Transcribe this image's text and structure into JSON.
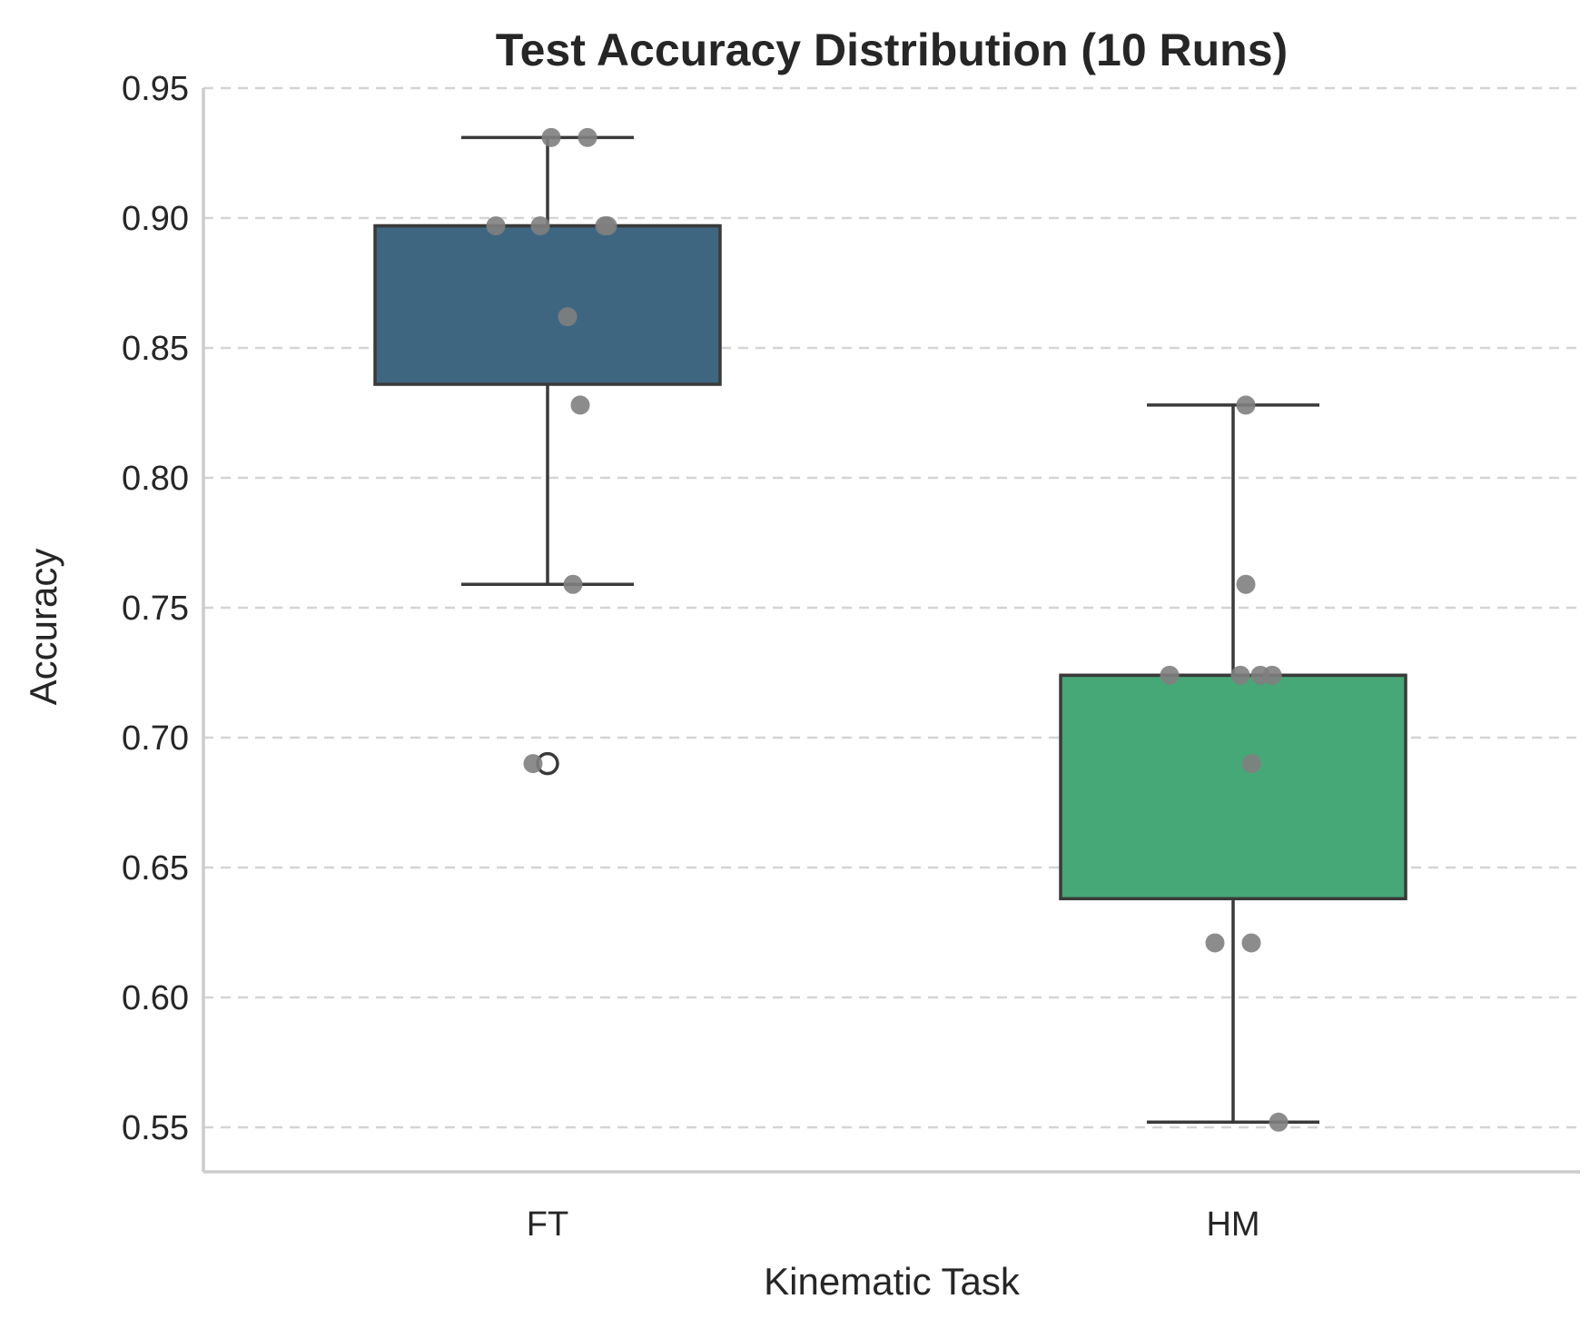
{
  "chart_data": {
    "type": "box",
    "title": "Test Accuracy Distribution (10 Runs)",
    "xlabel": "Kinematic Task",
    "ylabel": "Accuracy",
    "ylim": [
      0.533,
      0.95
    ],
    "yticks": [
      "0.55",
      "0.60",
      "0.65",
      "0.70",
      "0.75",
      "0.80",
      "0.85",
      "0.90",
      "0.95"
    ],
    "grid": "horizontal dashed",
    "categories": [
      "FT",
      "HM"
    ],
    "boxes": [
      {
        "category": "FT",
        "color": "#3e6680",
        "whisker_low": 0.759,
        "q1": 0.836,
        "median": 0.897,
        "q3": 0.897,
        "whisker_high": 0.931,
        "outliers": [
          0.69
        ],
        "points": [
          0.931,
          0.931,
          0.897,
          0.897,
          0.897,
          0.897,
          0.862,
          0.828,
          0.759,
          0.69
        ]
      },
      {
        "category": "HM",
        "color": "#47a877",
        "whisker_low": 0.552,
        "q1": 0.638,
        "median": 0.724,
        "q3": 0.724,
        "whisker_high": 0.828,
        "outliers": [],
        "points": [
          0.828,
          0.759,
          0.724,
          0.724,
          0.724,
          0.724,
          0.69,
          0.621,
          0.621,
          0.552
        ]
      }
    ],
    "point_color": "#808080"
  }
}
